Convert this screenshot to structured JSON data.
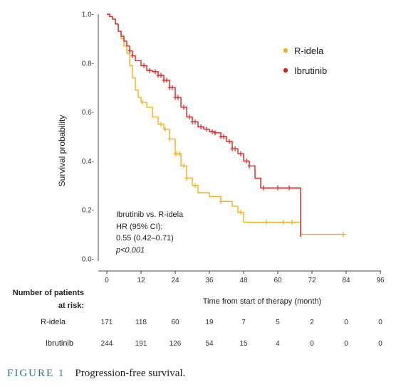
{
  "chart_data": {
    "type": "line",
    "chart_kind": "Kaplan-Meier step curve",
    "xlabel": "Time from start of therapy (month)",
    "ylabel": "Survival probability",
    "xlim": [
      0,
      96
    ],
    "ylim": [
      0,
      1.0
    ],
    "x_ticks": [
      "0",
      "12",
      "24",
      "36",
      "48",
      "60",
      "72",
      "84",
      "96"
    ],
    "y_ticks": [
      "0.0-",
      "0.2-",
      "0.4-",
      "0.6-",
      "0.8-",
      "1.0-"
    ],
    "x_tick_values": [
      0,
      12,
      24,
      36,
      48,
      60,
      72,
      84,
      96
    ],
    "y_tick_values": [
      0,
      0.2,
      0.4,
      0.6,
      0.8,
      1.0
    ],
    "grid": false,
    "legend_position": "top-right",
    "series": [
      {
        "name": "R-idela",
        "color": "#f2b01e",
        "x": [
          0,
          1,
          2,
          3,
          4,
          5,
          6,
          7,
          8,
          9,
          10,
          11,
          12,
          14,
          16,
          18,
          20,
          22,
          24,
          26,
          28,
          30,
          32,
          36,
          40,
          44,
          46,
          48,
          56,
          62,
          65,
          68,
          84
        ],
        "y": [
          1.0,
          0.99,
          0.98,
          0.96,
          0.93,
          0.9,
          0.87,
          0.84,
          0.79,
          0.74,
          0.69,
          0.66,
          0.64,
          0.62,
          0.58,
          0.55,
          0.53,
          0.49,
          0.43,
          0.38,
          0.33,
          0.3,
          0.27,
          0.255,
          0.235,
          0.215,
          0.19,
          0.15,
          0.15,
          0.15,
          0.15,
          0.1,
          0.1
        ],
        "censor_x": [
          12.5,
          19,
          20.5,
          22,
          24,
          24.5,
          25.5,
          27,
          28,
          31,
          40,
          47,
          56,
          62,
          65,
          83
        ]
      },
      {
        "name": "Ibrutinib",
        "color": "#e0201c",
        "x": [
          0,
          1,
          2,
          3,
          4,
          5,
          6,
          7,
          8,
          9,
          10,
          12,
          14,
          16,
          18,
          20,
          22,
          24,
          26,
          28,
          30,
          32,
          34,
          36,
          38,
          40,
          42,
          44,
          46,
          48,
          50,
          52,
          54,
          56,
          60,
          64,
          68
        ],
        "y": [
          1.0,
          0.99,
          0.98,
          0.96,
          0.93,
          0.91,
          0.89,
          0.87,
          0.85,
          0.83,
          0.81,
          0.79,
          0.77,
          0.765,
          0.75,
          0.73,
          0.7,
          0.66,
          0.62,
          0.58,
          0.56,
          0.54,
          0.53,
          0.52,
          0.515,
          0.5,
          0.48,
          0.45,
          0.43,
          0.4,
          0.38,
          0.33,
          0.29,
          0.29,
          0.29,
          0.29,
          0.09
        ],
        "censor_x": [
          8,
          9,
          13,
          15,
          17,
          18,
          19,
          20,
          21,
          22,
          23,
          24,
          25,
          27,
          29,
          30,
          31,
          33,
          35,
          37,
          38,
          40,
          41,
          43,
          44,
          45,
          47,
          49,
          50,
          55,
          60,
          64
        ]
      }
    ],
    "annotation": {
      "line1": "Ibrutinib vs. R-idela",
      "line2": "HR (95% CI):",
      "line3": "0.55 (0.42–0.71)",
      "line4": "p<0.001"
    },
    "risk_table": {
      "header_line1": "Number of patients",
      "header_line2": "at risk:",
      "rows": [
        {
          "label": "R-idela",
          "values": [
            "171",
            "118",
            "60",
            "19",
            "7",
            "5",
            "2",
            "0",
            "0"
          ]
        },
        {
          "label": "Ibrutinib",
          "values": [
            "244",
            "191",
            "126",
            "54",
            "15",
            "4",
            "0",
            "0",
            "0"
          ]
        }
      ]
    }
  },
  "caption": {
    "label": "FIGURE 1",
    "text": "Progression-free survival."
  }
}
